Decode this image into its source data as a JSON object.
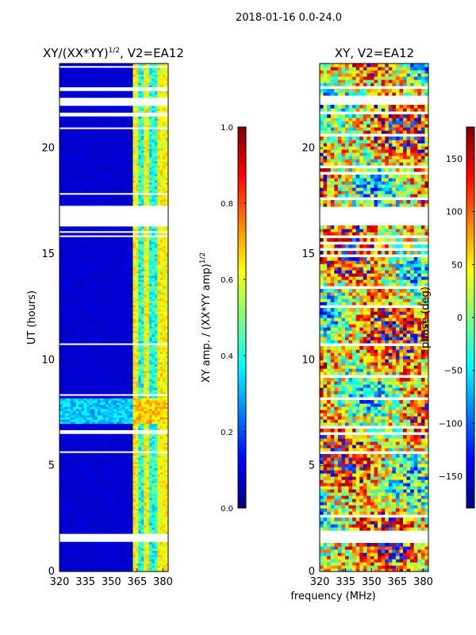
{
  "suptitle": "2018-01-16 0.0-24.0",
  "shared_xlabel": "frequency (MHz)",
  "chart_data": [
    {
      "type": "heatmap",
      "title": "XY/(XX*YY)",
      "title_superscript": "1/2",
      "title_suffix": ", V2=EA12",
      "xlabel": "",
      "ylabel": "UT (hours)",
      "xlim": [
        320,
        383
      ],
      "ylim": [
        0,
        24
      ],
      "xticks": [
        320,
        335,
        350,
        365,
        380
      ],
      "yticks": [
        0,
        5,
        10,
        15,
        20
      ],
      "grid": false,
      "colormap": "jet",
      "colorbar": {
        "label": "XY amp. / (XX*YY amp)",
        "label_superscript": "1/2",
        "range": [
          0.0,
          1.0
        ],
        "ticks": [
          "0.0",
          "0.2",
          "0.4",
          "0.6",
          "0.8",
          "1.0"
        ]
      },
      "background_value": 0.08,
      "bright_band_mhz": [
        362,
        383
      ],
      "bright_columns_mhz": [
        364,
        370,
        377,
        381
      ],
      "bright_column_value": 0.55,
      "gap_rows_ut": [
        [
          1.45,
          1.85
        ],
        [
          2.0,
          2.05
        ],
        [
          2.6,
          2.65
        ],
        [
          3.3,
          3.35
        ],
        [
          3.4,
          3.45
        ],
        [
          4.6,
          4.65
        ],
        [
          4.8,
          4.85
        ],
        [
          5.6,
          5.75
        ],
        [
          6.0,
          6.05
        ],
        [
          6.5,
          6.75
        ],
        [
          7.0,
          7.05
        ],
        [
          7.5,
          7.55
        ],
        [
          7.8,
          7.85
        ],
        [
          8.1,
          8.15
        ],
        [
          8.35,
          8.4
        ],
        [
          9.2,
          9.25
        ],
        [
          9.6,
          9.65
        ],
        [
          10.7,
          10.8
        ],
        [
          11.7,
          11.75
        ],
        [
          12.0,
          12.05
        ],
        [
          12.5,
          12.55
        ],
        [
          13.0,
          13.05
        ],
        [
          13.4,
          13.45
        ],
        [
          13.6,
          13.65
        ],
        [
          14.1,
          14.15
        ],
        [
          14.5,
          14.55
        ],
        [
          14.9,
          14.95
        ],
        [
          15.2,
          15.25
        ],
        [
          15.5,
          15.55
        ],
        [
          15.8,
          15.95
        ],
        [
          16.05,
          16.1
        ],
        [
          16.3,
          17.3
        ],
        [
          17.6,
          17.65
        ],
        [
          17.85,
          17.9
        ],
        [
          18.3,
          18.35
        ],
        [
          18.8,
          18.85
        ],
        [
          19.1,
          19.15
        ],
        [
          19.3,
          19.35
        ],
        [
          19.6,
          19.65
        ],
        [
          19.9,
          19.95
        ],
        [
          20.6,
          20.65
        ],
        [
          20.95,
          21.0
        ],
        [
          21.55,
          21.7
        ],
        [
          22.0,
          22.45
        ],
        [
          22.75,
          22.95
        ],
        [
          23.85,
          23.9
        ]
      ],
      "high_rows_ut": [
        [
          7.0,
          8.2
        ]
      ]
    },
    {
      "type": "heatmap",
      "title": "XY, V2=EA12",
      "xlabel": "frequency (MHz)",
      "ylabel": "",
      "xlim": [
        320,
        383
      ],
      "ylim": [
        0,
        24
      ],
      "xticks": [
        320,
        335,
        350,
        365,
        380
      ],
      "yticks": [
        0,
        5,
        10,
        15,
        20
      ],
      "grid": false,
      "colormap": "jet",
      "colorbar": {
        "label": "phase (deg)",
        "range": [
          -180,
          180
        ],
        "ticks": [
          "−150",
          "−100",
          "−50",
          "0",
          "50",
          "100",
          "150"
        ],
        "tick_values": [
          -150,
          -100,
          -50,
          0,
          50,
          100,
          150
        ]
      },
      "gap_rows_ut": [
        [
          1.35,
          1.95
        ],
        [
          2.6,
          2.65
        ],
        [
          3.1,
          3.15
        ],
        [
          3.4,
          3.45
        ],
        [
          4.6,
          4.65
        ],
        [
          4.8,
          4.85
        ],
        [
          5.6,
          5.75
        ],
        [
          6.1,
          6.15
        ],
        [
          6.5,
          6.55
        ],
        [
          6.8,
          6.85
        ],
        [
          7.0,
          7.05
        ],
        [
          7.5,
          7.55
        ],
        [
          7.8,
          7.85
        ],
        [
          8.1,
          8.2
        ],
        [
          8.35,
          8.4
        ],
        [
          9.2,
          9.25
        ],
        [
          9.6,
          9.65
        ],
        [
          10.7,
          10.8
        ],
        [
          11.7,
          11.75
        ],
        [
          12.0,
          12.05
        ],
        [
          12.5,
          12.55
        ],
        [
          13.0,
          13.05
        ],
        [
          13.4,
          13.45
        ],
        [
          13.6,
          13.65
        ],
        [
          14.1,
          14.15
        ],
        [
          14.5,
          14.55
        ],
        [
          14.9,
          14.95
        ],
        [
          15.2,
          15.25
        ],
        [
          15.5,
          15.55
        ],
        [
          15.8,
          15.95
        ],
        [
          16.05,
          16.1
        ],
        [
          16.3,
          17.3
        ],
        [
          17.6,
          17.65
        ],
        [
          17.85,
          17.9
        ],
        [
          18.3,
          18.35
        ],
        [
          18.8,
          18.85
        ],
        [
          19.1,
          19.15
        ],
        [
          19.3,
          19.35
        ],
        [
          19.6,
          19.65
        ],
        [
          19.9,
          19.95
        ],
        [
          20.6,
          20.65
        ],
        [
          20.95,
          21.0
        ],
        [
          21.55,
          21.7
        ],
        [
          22.0,
          22.45
        ],
        [
          22.75,
          22.95
        ],
        [
          23.85,
          23.9
        ]
      ],
      "phase_field_note": "noisy wrapped phase; mostly orange/red with blue-cyan patches"
    }
  ],
  "colors": {
    "jet_stops": [
      "#00007f",
      "#0000ff",
      "#007fff",
      "#00ffff",
      "#7fff7f",
      "#ffff00",
      "#ff7f00",
      "#ff0000",
      "#7f0000"
    ]
  }
}
